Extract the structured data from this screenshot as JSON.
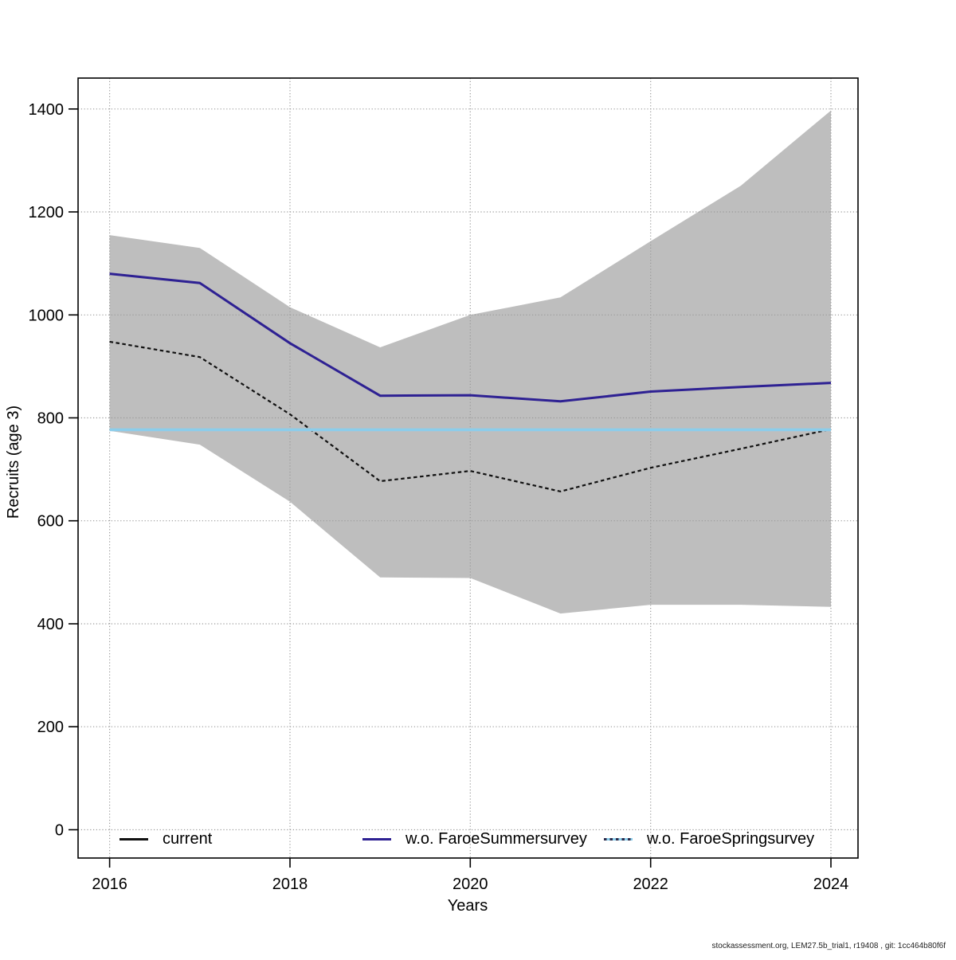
{
  "footer": "stockassessment.org, LEM27.5b_trial1, r19408 , git: 1cc464b80f6f",
  "chart_data": {
    "type": "line",
    "title": "",
    "xlabel": "Years",
    "ylabel": "Recruits (age 3)",
    "x": [
      2016,
      2017,
      2018,
      2019,
      2020,
      2021,
      2022,
      2023,
      2024
    ],
    "xticks": [
      2016,
      2018,
      2020,
      2022,
      2024
    ],
    "yticks": [
      0,
      200,
      400,
      600,
      800,
      1000,
      1200,
      1400
    ],
    "xlim": [
      2015.65,
      2024.3
    ],
    "ylim": [
      -55,
      1460
    ],
    "grid": true,
    "legend_position": "bottom-inside",
    "band": {
      "label": "confidence-band",
      "color": "#bebebe",
      "upper": [
        1155,
        1130,
        1015,
        937,
        1000,
        1034,
        1143,
        1251,
        1397
      ],
      "lower": [
        775,
        748,
        637,
        490,
        489,
        420,
        437,
        437,
        433
      ]
    },
    "series": [
      {
        "name": "current",
        "color": "#111111",
        "dash": "4.5 3.5",
        "width": 2.2,
        "values": [
          948,
          918,
          807,
          677,
          697,
          657,
          703,
          740,
          778
        ]
      },
      {
        "name": "w.o. FaroeSummersurvey",
        "color": "#2e2193",
        "dash": "",
        "width": 3,
        "values": [
          1080,
          1062,
          945,
          843,
          844,
          832,
          851,
          860,
          868
        ]
      },
      {
        "name": "w.o. FaroeSpringsurvey",
        "color": "#8bcdeb",
        "dash": "",
        "width": 3.6,
        "values": [
          777,
          777,
          777,
          777,
          777,
          777,
          777,
          777,
          777
        ]
      }
    ]
  }
}
